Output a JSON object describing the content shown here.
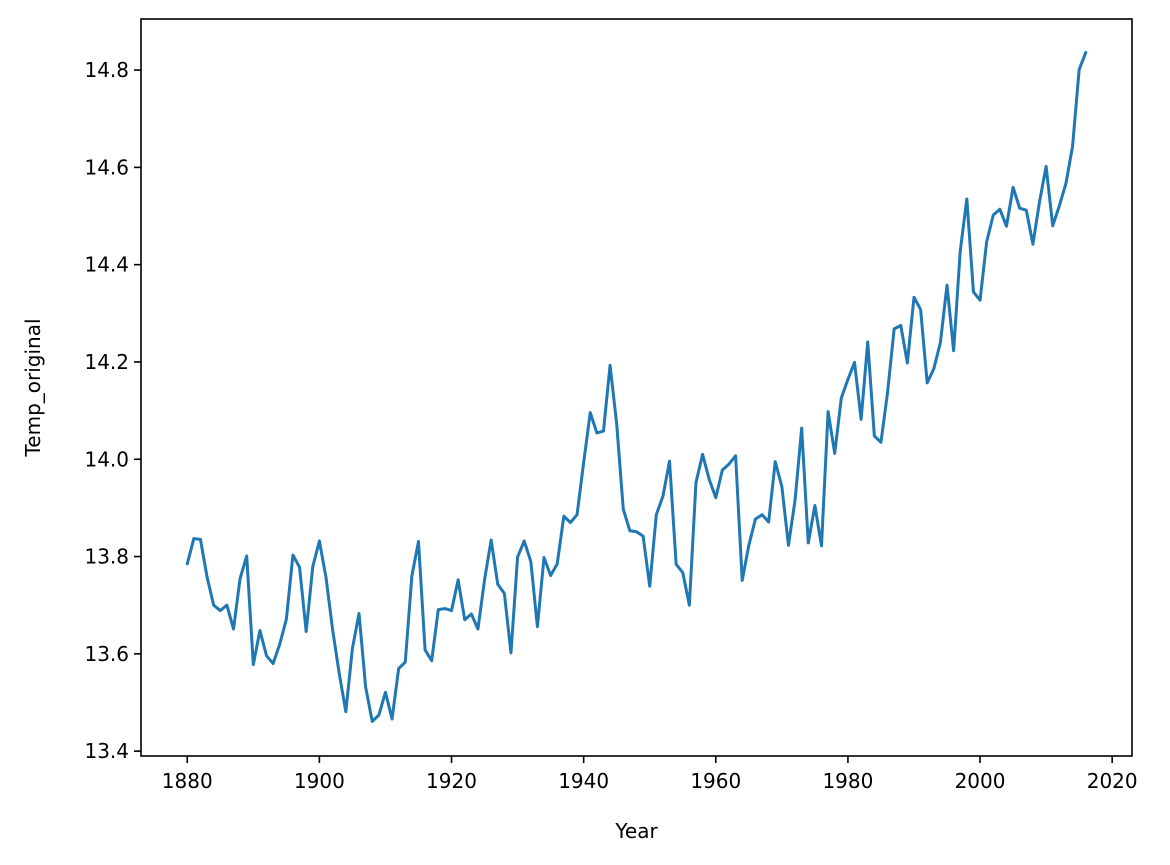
{
  "chart_data": {
    "type": "line",
    "title": "",
    "xlabel": "Year",
    "ylabel": "Temp_original",
    "xlim": [
      1873,
      2023
    ],
    "ylim": [
      13.39,
      14.905
    ],
    "x_ticks": [
      1880,
      1900,
      1920,
      1940,
      1960,
      1980,
      2000,
      2020
    ],
    "y_ticks": [
      13.4,
      13.6,
      13.8,
      14.0,
      14.2,
      14.4,
      14.6,
      14.8
    ],
    "x_tick_labels": [
      "1880",
      "1900",
      "1920",
      "1940",
      "1960",
      "1980",
      "2000",
      "2020"
    ],
    "y_tick_labels": [
      "13.4",
      "13.6",
      "13.8",
      "14.0",
      "14.2",
      "14.4",
      "14.6",
      "14.8"
    ],
    "grid": false,
    "series": [
      {
        "color": "#1f77b4",
        "x": [
          1880,
          1881,
          1882,
          1883,
          1884,
          1885,
          1886,
          1887,
          1888,
          1889,
          1890,
          1891,
          1892,
          1893,
          1894,
          1895,
          1896,
          1897,
          1898,
          1899,
          1900,
          1901,
          1902,
          1903,
          1904,
          1905,
          1906,
          1907,
          1908,
          1909,
          1910,
          1911,
          1912,
          1913,
          1914,
          1915,
          1916,
          1917,
          1918,
          1919,
          1920,
          1921,
          1922,
          1923,
          1924,
          1925,
          1926,
          1927,
          1928,
          1929,
          1930,
          1931,
          1932,
          1933,
          1934,
          1935,
          1936,
          1937,
          1938,
          1939,
          1940,
          1941,
          1942,
          1943,
          1944,
          1945,
          1946,
          1947,
          1948,
          1949,
          1950,
          1951,
          1952,
          1953,
          1954,
          1955,
          1956,
          1957,
          1958,
          1959,
          1960,
          1961,
          1962,
          1963,
          1964,
          1965,
          1966,
          1967,
          1968,
          1969,
          1970,
          1971,
          1972,
          1973,
          1974,
          1975,
          1976,
          1977,
          1978,
          1979,
          1980,
          1981,
          1982,
          1983,
          1984,
          1985,
          1986,
          1987,
          1988,
          1989,
          1990,
          1991,
          1992,
          1993,
          1994,
          1995,
          1996,
          1997,
          1998,
          1999,
          2000,
          2001,
          2002,
          2003,
          2004,
          2005,
          2006,
          2007,
          2008,
          2009,
          2010,
          2011,
          2012,
          2013,
          2014,
          2015,
          2016
        ],
        "y": [
          13.785,
          13.837,
          13.835,
          13.758,
          13.7,
          13.689,
          13.7,
          13.651,
          13.755,
          13.801,
          13.578,
          13.648,
          13.596,
          13.58,
          13.62,
          13.671,
          13.803,
          13.778,
          13.646,
          13.779,
          13.832,
          13.757,
          13.65,
          13.56,
          13.481,
          13.611,
          13.683,
          13.532,
          13.461,
          13.474,
          13.521,
          13.466,
          13.57,
          13.583,
          13.76,
          13.831,
          13.608,
          13.586,
          13.691,
          13.693,
          13.689,
          13.752,
          13.67,
          13.682,
          13.651,
          13.752,
          13.834,
          13.743,
          13.724,
          13.602,
          13.799,
          13.832,
          13.79,
          13.656,
          13.798,
          13.761,
          13.785,
          13.883,
          13.87,
          13.886,
          13.993,
          14.096,
          14.054,
          14.058,
          14.193,
          14.073,
          13.897,
          13.853,
          13.851,
          13.842,
          13.739,
          13.886,
          13.924,
          13.996,
          13.784,
          13.767,
          13.7,
          13.952,
          14.01,
          13.959,
          13.921,
          13.978,
          13.99,
          14.007,
          13.751,
          13.823,
          13.877,
          13.886,
          13.871,
          13.995,
          13.944,
          13.823,
          13.916,
          14.064,
          13.828,
          13.905,
          13.822,
          14.098,
          14.012,
          14.126,
          14.164,
          14.199,
          14.082,
          14.241,
          14.048,
          14.035,
          14.137,
          14.268,
          14.275,
          14.198,
          14.333,
          14.308,
          14.157,
          14.186,
          14.24,
          14.358,
          14.223,
          14.428,
          14.535,
          14.344,
          14.327,
          14.447,
          14.502,
          14.514,
          14.479,
          14.559,
          14.516,
          14.512,
          14.442,
          14.529,
          14.602,
          14.48,
          14.521,
          14.567,
          14.643,
          14.801,
          14.836
        ]
      }
    ]
  }
}
